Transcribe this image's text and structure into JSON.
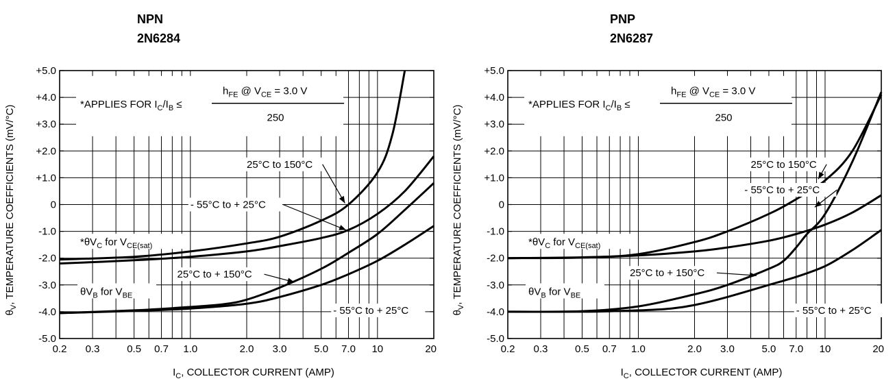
{
  "chart_data": [
    {
      "type": "line",
      "title": "NPN",
      "subtitle": "2N6284",
      "xlabel": "I_C, COLLECTOR CURRENT (AMP)",
      "ylabel": "θ_V, TEMPERATURE COEFFICIENTS (mV/°C)",
      "x_scale": "log",
      "xlim": [
        0.2,
        20
      ],
      "ylim": [
        -5,
        5
      ],
      "grid": true,
      "xticks": [
        0.2,
        0.3,
        0.5,
        0.7,
        1.0,
        2.0,
        3.0,
        5.0,
        7.0,
        10,
        20
      ],
      "xtick_labels": [
        "0.2",
        "0.3",
        "0.5",
        "0.7",
        "1.0",
        "2.0",
        "3.0",
        "5.0",
        "7.0",
        "10",
        "20"
      ],
      "yticks": [
        5,
        4,
        3,
        2,
        1,
        0,
        -1,
        -2,
        -3,
        -4,
        -5
      ],
      "ytick_labels": [
        "+5.0",
        "+4.0",
        "+3.0",
        "+2.0",
        "+1.0",
        "0",
        "-1.0",
        "-2.0",
        "-3.0",
        "-4.0",
        "-5.0"
      ],
      "note": {
        "prefix": "*APPLIES FOR I",
        "sub1": "C",
        "mid": "/I",
        "sub2": "B",
        "le": " ≤",
        "num_h": "h",
        "num_h_sub": "FE",
        "num_at": " @ V",
        "num_v_sub": "CE",
        "num_val": "  =  3.0 V",
        "den": "250"
      },
      "group_labels": {
        "vc_pre": "*θV",
        "vc_sub": "C",
        "vc_mid": " for V",
        "vc_sub2": "CE(sat)",
        "vb_pre": "θV",
        "vb_sub": "B",
        "vb_mid": " for V",
        "vb_sub2": "BE"
      },
      "series": [
        {
          "name": "25°C to 150°C",
          "x": [
            0.2,
            0.5,
            1.0,
            2.0,
            3.0,
            5.0,
            7.0,
            10,
            12,
            14
          ],
          "y": [
            -2.05,
            -1.95,
            -1.75,
            -1.45,
            -1.2,
            -0.6,
            0.0,
            1.2,
            2.6,
            5.0
          ]
        },
        {
          "name": "-55°C to + 25°C",
          "x": [
            0.2,
            0.5,
            1.0,
            2.0,
            3.0,
            5.0,
            7.0,
            10,
            14,
            20
          ],
          "y": [
            -2.2,
            -2.08,
            -1.95,
            -1.75,
            -1.55,
            -1.25,
            -0.95,
            -0.35,
            0.5,
            1.8
          ]
        },
        {
          "name": "25°C to + 150°C",
          "x": [
            0.2,
            0.5,
            1.0,
            1.5,
            2.0,
            3.0,
            5.0,
            7.0,
            10,
            14,
            20
          ],
          "y": [
            -4.05,
            -3.95,
            -3.82,
            -3.72,
            -3.55,
            -3.1,
            -2.4,
            -1.8,
            -1.1,
            -0.2,
            0.8
          ]
        },
        {
          "name": "-55°C to + 25°C",
          "x": [
            0.2,
            0.5,
            1.0,
            2.0,
            3.0,
            5.0,
            7.0,
            10,
            14,
            20
          ],
          "y": [
            -4.05,
            -3.97,
            -3.88,
            -3.7,
            -3.45,
            -3.0,
            -2.6,
            -2.1,
            -1.5,
            -0.8
          ]
        }
      ],
      "annotations": [
        {
          "text": "25°C to 150°C",
          "x": 2.0,
          "y": 1.5,
          "arrow_to": [
            6.7,
            0.05
          ]
        },
        {
          "text": "- 55°C to + 25°C",
          "x": 1.0,
          "y": 0.0,
          "arrow_to": [
            6.8,
            -0.95
          ]
        },
        {
          "text": "25°C to + 150°C",
          "x": 0.85,
          "y": -2.6,
          "arrow_to": [
            3.6,
            -2.9
          ]
        },
        {
          "text": "- 55°C to + 25°C",
          "x": 5.8,
          "y": -3.95
        }
      ]
    },
    {
      "type": "line",
      "title": "PNP",
      "subtitle": "2N6287",
      "xlabel": "I_C, COLLECTOR CURRENT (AMP)",
      "ylabel": "θ_V, TEMPERATURE COEFFICIENTS (mV/°C)",
      "x_scale": "log",
      "xlim": [
        0.2,
        20
      ],
      "ylim": [
        -5,
        5
      ],
      "grid": true,
      "xticks": [
        0.2,
        0.3,
        0.5,
        0.7,
        1.0,
        2.0,
        3.0,
        5.0,
        7.0,
        10,
        20
      ],
      "xtick_labels": [
        "0.2",
        "0.3",
        "0.5",
        "0.7",
        "1.0",
        "2.0",
        "3.0",
        "5.0",
        "7.0",
        "10",
        "20"
      ],
      "yticks": [
        5,
        4,
        3,
        2,
        1,
        0,
        -1,
        -2,
        -3,
        -4,
        -5
      ],
      "ytick_labels": [
        "+5.0",
        "+4.0",
        "+3.0",
        "+2.0",
        "+1.0",
        "0",
        "-1.0",
        "-2.0",
        "-3.0",
        "-4.0",
        "-5.0"
      ],
      "note": {
        "prefix": "*APPLIES FOR I",
        "sub1": "C",
        "mid": "/I",
        "sub2": "B",
        "le": " ≤",
        "num_h": "h",
        "num_h_sub": "FE",
        "num_at": " @ V",
        "num_v_sub": "CE",
        "num_val": "  =  3.0 V",
        "den": "250"
      },
      "group_labels": {
        "vc_pre": "*θV",
        "vc_sub": "C",
        "vc_mid": " for V",
        "vc_sub2": "CE(sat)",
        "vb_pre": "θV",
        "vb_sub": "B",
        "vb_mid": " for V",
        "vb_sub2": "BE"
      },
      "series": [
        {
          "name": "25°C to 150°C",
          "x": [
            0.2,
            0.5,
            1.0,
            2.0,
            3.0,
            5.0,
            7.0,
            10,
            14,
            20
          ],
          "y": [
            -2.0,
            -1.98,
            -1.85,
            -1.4,
            -1.0,
            -0.35,
            0.2,
            0.9,
            2.0,
            4.1
          ]
        },
        {
          "name": "- 55°C to + 25°C",
          "x": [
            0.2,
            0.5,
            1.0,
            2.0,
            3.0,
            5.0,
            7.0,
            10,
            14,
            20
          ],
          "y": [
            -2.0,
            -1.97,
            -1.9,
            -1.75,
            -1.6,
            -1.35,
            -1.1,
            -0.75,
            -0.3,
            0.35
          ]
        },
        {
          "name": "25°C to + 150°C",
          "x": [
            0.2,
            0.5,
            1.0,
            2.0,
            3.0,
            5.0,
            6.0,
            7.0,
            8.0,
            10,
            14,
            20
          ],
          "y": [
            -4.0,
            -3.98,
            -3.8,
            -3.35,
            -3.0,
            -2.4,
            -2.1,
            -1.6,
            -1.1,
            -0.35,
            1.6,
            4.2
          ]
        },
        {
          "name": "- 55°C to + 25°C",
          "x": [
            0.2,
            0.5,
            1.0,
            1.5,
            2.0,
            3.0,
            5.0,
            7.0,
            10,
            14,
            20
          ],
          "y": [
            -4.0,
            -4.0,
            -3.95,
            -3.88,
            -3.75,
            -3.45,
            -3.0,
            -2.7,
            -2.3,
            -1.7,
            -0.95
          ]
        }
      ],
      "annotations": [
        {
          "text": "25°C to 150°C",
          "x": 4.0,
          "y": 1.5,
          "arrow_to": [
            9.2,
            0.95
          ]
        },
        {
          "text": "- 55°C to + 25°C",
          "x": 3.7,
          "y": 0.55,
          "arrow_to": [
            8.8,
            -0.1
          ]
        },
        {
          "text": "25°C to + 150°C",
          "x": 0.9,
          "y": -2.55,
          "arrow_to": [
            4.3,
            -2.65
          ]
        },
        {
          "text": "- 55°C to + 25°C",
          "x": 7.0,
          "y": -3.95
        }
      ]
    }
  ]
}
